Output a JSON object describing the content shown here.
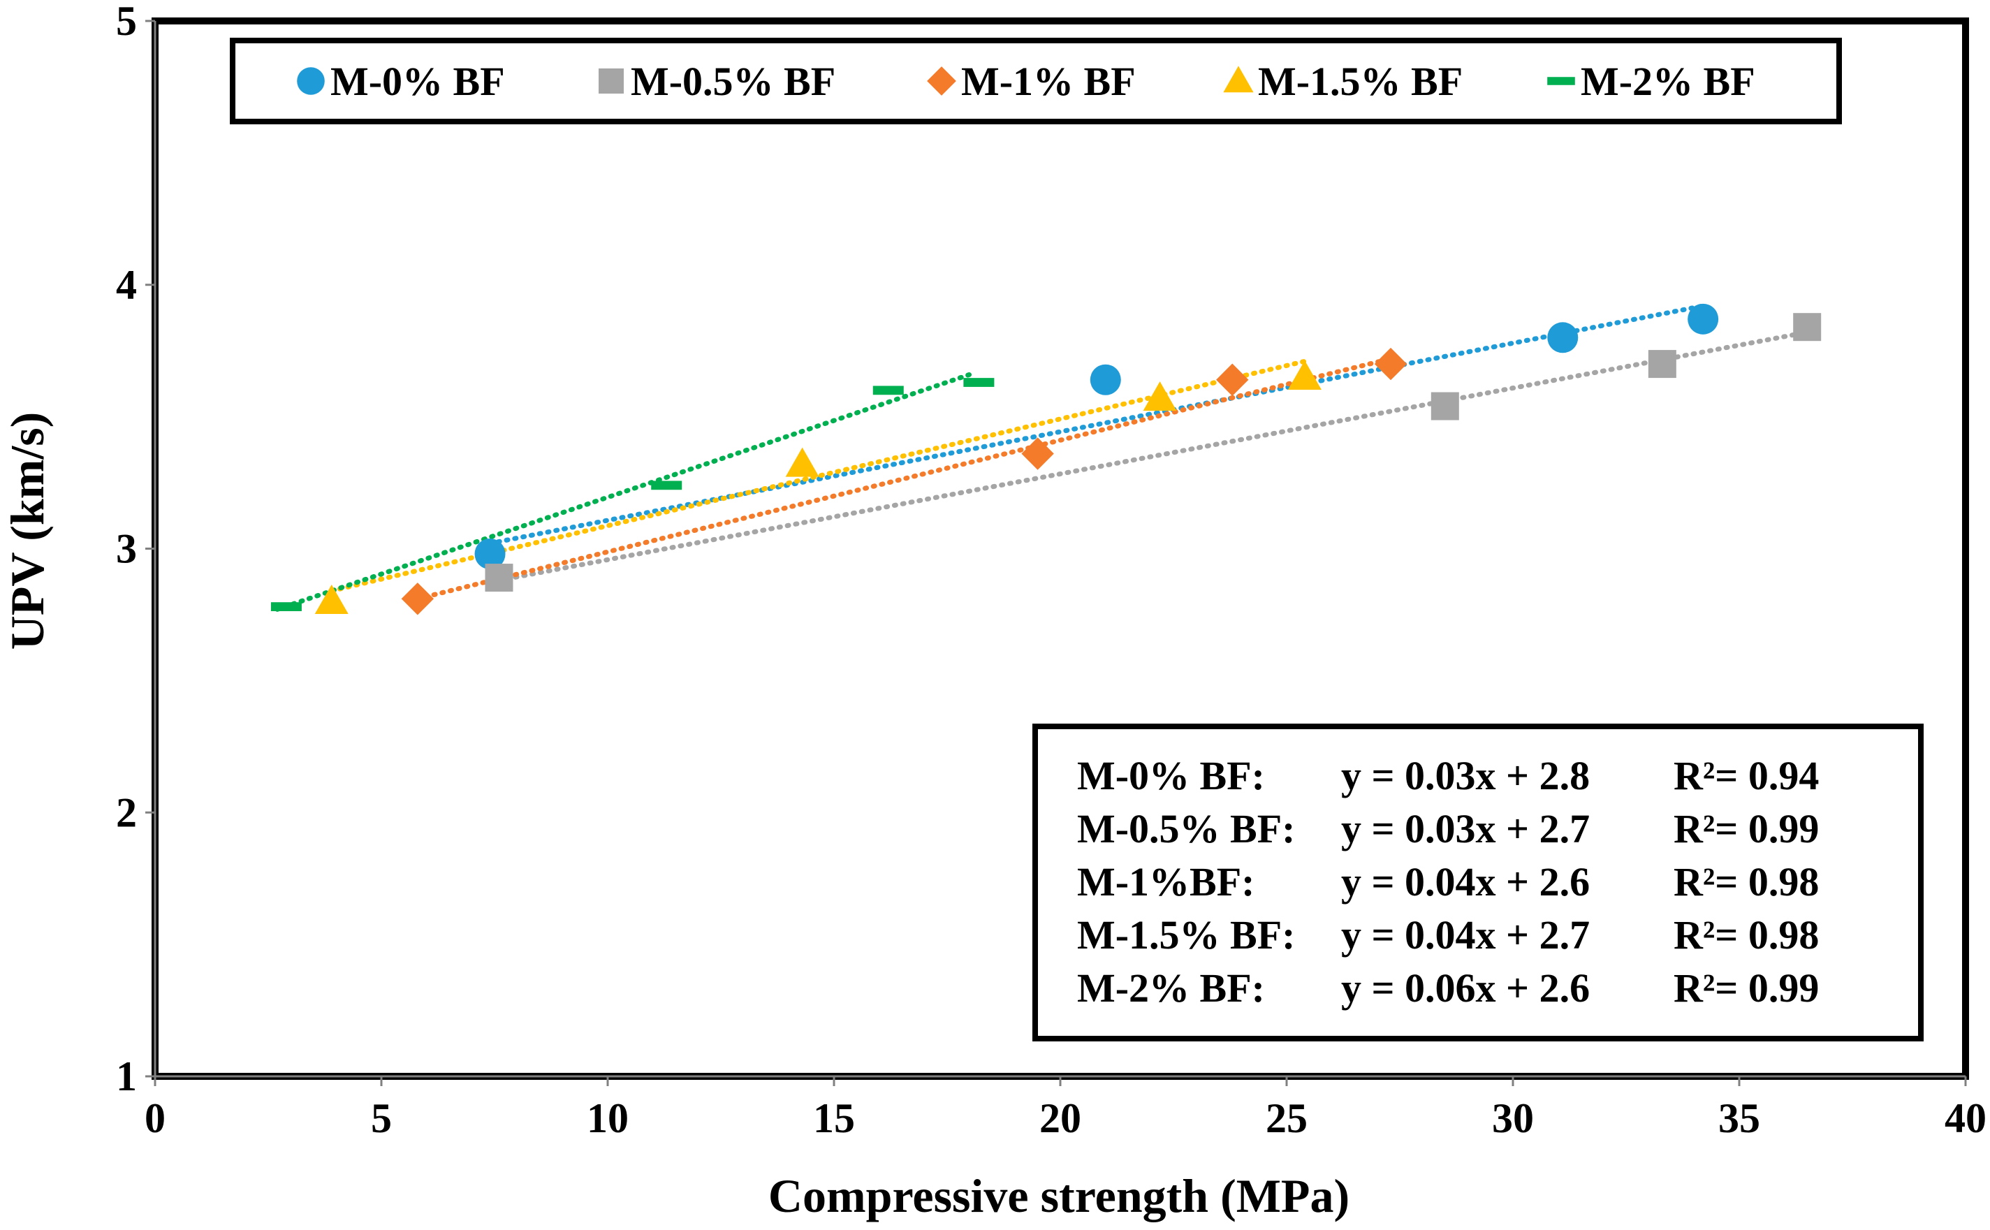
{
  "chart_data": {
    "type": "scatter",
    "title": "",
    "xlabel": "Compressive strength (MPa)",
    "ylabel": "UPV (km/s)",
    "xlim": [
      0,
      40
    ],
    "ylim": [
      1,
      5
    ],
    "xticks": [
      "0",
      "5",
      "10",
      "15",
      "20",
      "25",
      "30",
      "35",
      "40"
    ],
    "yticks": [
      "1",
      "2",
      "3",
      "4",
      "5"
    ],
    "grid": false,
    "legend_position": "top",
    "series": [
      {
        "name": "M-0% BF",
        "color": "#1f9bd7",
        "marker": "circle",
        "x": [
          7.4,
          21.0,
          31.1,
          34.2
        ],
        "y": [
          2.98,
          3.64,
          3.8,
          3.87
        ],
        "trend": {
          "x": [
            7.4,
            34.2
          ],
          "y": [
            3.02,
            3.92
          ]
        }
      },
      {
        "name": "M-0.5% BF",
        "color": "#a5a5a5",
        "marker": "square",
        "x": [
          7.6,
          28.5,
          33.3,
          36.5
        ],
        "y": [
          2.89,
          3.54,
          3.7,
          3.84
        ],
        "trend": {
          "x": [
            7.6,
            36.5
          ],
          "y": [
            2.88,
            3.82
          ]
        }
      },
      {
        "name": "M-1% BF",
        "color": "#f47b2a",
        "marker": "diamond",
        "x": [
          5.8,
          19.5,
          23.8,
          27.3
        ],
        "y": [
          2.81,
          3.36,
          3.64,
          3.7
        ],
        "trend": {
          "x": [
            5.8,
            27.3
          ],
          "y": [
            2.81,
            3.72
          ]
        }
      },
      {
        "name": "M-1.5% BF",
        "color": "#ffc000",
        "marker": "triangle",
        "x": [
          3.9,
          14.3,
          22.2,
          25.4
        ],
        "y": [
          2.8,
          3.32,
          3.57,
          3.65
        ],
        "trend": {
          "x": [
            3.9,
            25.4
          ],
          "y": [
            2.84,
            3.71
          ]
        }
      },
      {
        "name": "M-2% BF",
        "color": "#00b050",
        "marker": "dash",
        "x": [
          2.9,
          11.3,
          16.2,
          18.2
        ],
        "y": [
          2.78,
          3.24,
          3.6,
          3.63
        ],
        "trend": {
          "x": [
            2.7,
            18.0
          ],
          "y": [
            2.77,
            3.66
          ]
        }
      }
    ],
    "annotations": [
      {
        "label": "M-0% BF:",
        "equation": "y = 0.03x + 2.8",
        "r2": "R²= 0.94"
      },
      {
        "label": "M-0.5% BF:",
        "equation": "y = 0.03x + 2.7",
        "r2": "R²= 0.99"
      },
      {
        "label": "M-1%BF:",
        "equation": "y = 0.04x + 2.6",
        "r2": "R²= 0.98"
      },
      {
        "label": "M-1.5% BF:",
        "equation": "y = 0.04x + 2.7",
        "r2": "R²= 0.98"
      },
      {
        "label": "M-2% BF:",
        "equation": "y = 0.06x + 2.6",
        "r2": "R²= 0.99"
      }
    ]
  }
}
